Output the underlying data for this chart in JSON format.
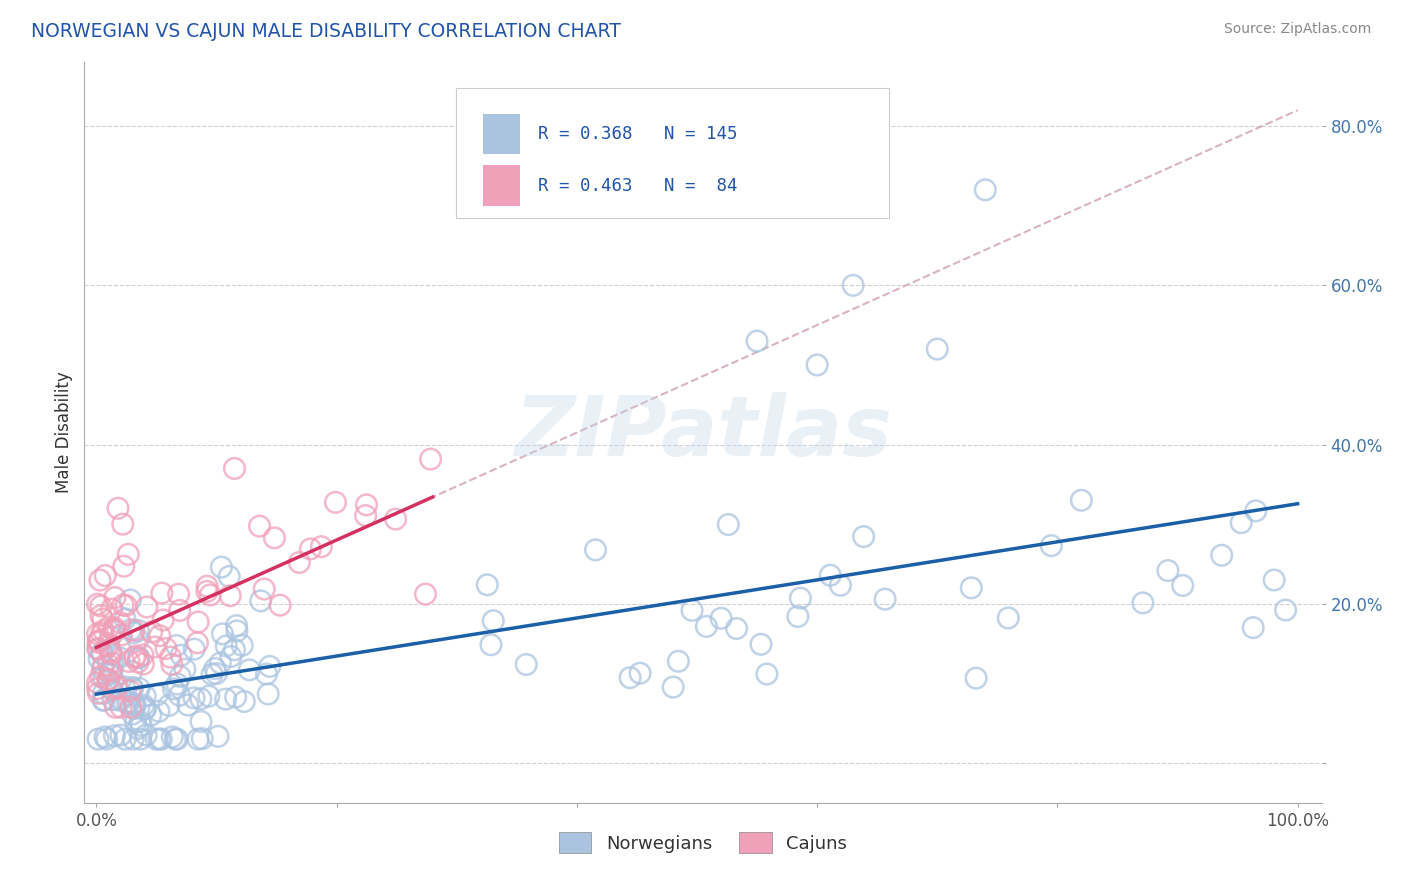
{
  "title": "NORWEGIAN VS CAJUN MALE DISABILITY CORRELATION CHART",
  "source": "Source: ZipAtlas.com",
  "ylabel": "Male Disability",
  "norwegian_color": "#aac4e0",
  "cajun_color": "#f0a0b8",
  "norwegian_line_color": "#1a5fa8",
  "cajun_line_color": "#d43060",
  "dashed_line_color": "#d0a0b0",
  "R_norwegian": 0.368,
  "N_norwegian": 145,
  "R_cajun": 0.463,
  "N_cajun": 84,
  "watermark": "ZIPatlas",
  "background_color": "#ffffff",
  "title_color": "#2255aa",
  "source_color": "#888888"
}
